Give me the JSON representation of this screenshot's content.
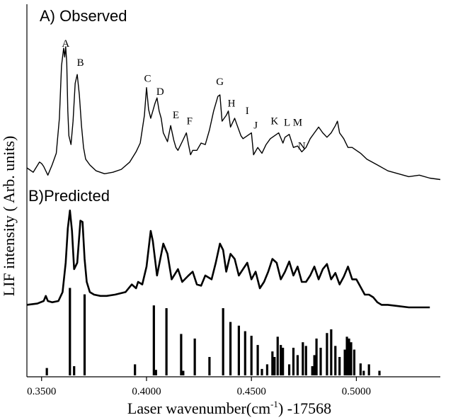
{
  "chart_data": {
    "type": "line",
    "title": "",
    "xlabel_main": "Laser wavenumber(cm",
    "xlabel_sup": "-1",
    "xlabel_tail": ") -17568",
    "ylabel": "LIF intensity ( Arb. units)",
    "xlim": [
      0.343,
      0.54
    ],
    "xticks": [
      {
        "value": 0.35,
        "label": "0.3500"
      },
      {
        "value": 0.4,
        "label": "0.4000"
      },
      {
        "value": 0.45,
        "label": "0.4500"
      },
      {
        "value": 0.5,
        "label": "0.5000"
      }
    ],
    "panels": [
      {
        "name": "observed",
        "label": "A) Observed"
      },
      {
        "name": "predicted",
        "label": "B)Predicted"
      }
    ],
    "peak_labels": [
      {
        "label": "A",
        "x": 0.3615,
        "y": 0.96
      },
      {
        "label": "B",
        "x": 0.3685,
        "y": 0.83
      },
      {
        "label": "C",
        "x": 0.4005,
        "y": 0.72
      },
      {
        "label": "D",
        "x": 0.4065,
        "y": 0.63
      },
      {
        "label": "E",
        "x": 0.414,
        "y": 0.47
      },
      {
        "label": "F",
        "x": 0.4205,
        "y": 0.43
      },
      {
        "label": "G",
        "x": 0.435,
        "y": 0.7
      },
      {
        "label": "H",
        "x": 0.4405,
        "y": 0.55
      },
      {
        "label": "I",
        "x": 0.448,
        "y": 0.5
      },
      {
        "label": "J",
        "x": 0.452,
        "y": 0.4
      },
      {
        "label": "K",
        "x": 0.461,
        "y": 0.43
      },
      {
        "label": "L",
        "x": 0.467,
        "y": 0.42
      },
      {
        "label": "M",
        "x": 0.472,
        "y": 0.42
      },
      {
        "label": "N",
        "x": 0.474,
        "y": 0.26
      }
    ],
    "series": [
      {
        "name": "Observed",
        "x": [
          0.343,
          0.346,
          0.349,
          0.35,
          0.351,
          0.353,
          0.355,
          0.357,
          0.3585,
          0.3595,
          0.3605,
          0.361,
          0.3615,
          0.362,
          0.3625,
          0.363,
          0.364,
          0.365,
          0.366,
          0.367,
          0.368,
          0.369,
          0.37,
          0.371,
          0.373,
          0.376,
          0.38,
          0.384,
          0.388,
          0.392,
          0.395,
          0.397,
          0.399,
          0.4,
          0.401,
          0.402,
          0.403,
          0.404,
          0.405,
          0.406,
          0.407,
          0.408,
          0.41,
          0.4115,
          0.413,
          0.414,
          0.415,
          0.417,
          0.419,
          0.42,
          0.421,
          0.422,
          0.424,
          0.426,
          0.428,
          0.43,
          0.432,
          0.434,
          0.435,
          0.436,
          0.438,
          0.439,
          0.44,
          0.442,
          0.443,
          0.445,
          0.446,
          0.448,
          0.45,
          0.451,
          0.453,
          0.455,
          0.457,
          0.459,
          0.461,
          0.463,
          0.465,
          0.466,
          0.468,
          0.47,
          0.472,
          0.474,
          0.476,
          0.478,
          0.48,
          0.482,
          0.484,
          0.486,
          0.488,
          0.49,
          0.491,
          0.492,
          0.494,
          0.496,
          0.498,
          0.5,
          0.502,
          0.505,
          0.51,
          0.515,
          0.52,
          0.525,
          0.53,
          0.535,
          0.54
        ],
        "y": [
          0.16,
          0.13,
          0.2,
          0.19,
          0.17,
          0.11,
          0.18,
          0.26,
          0.5,
          0.86,
          0.98,
          0.92,
          0.99,
          0.88,
          0.55,
          0.38,
          0.32,
          0.48,
          0.74,
          0.8,
          0.66,
          0.45,
          0.3,
          0.22,
          0.18,
          0.14,
          0.12,
          0.13,
          0.15,
          0.2,
          0.27,
          0.33,
          0.52,
          0.71,
          0.56,
          0.5,
          0.55,
          0.6,
          0.64,
          0.55,
          0.5,
          0.4,
          0.34,
          0.45,
          0.35,
          0.3,
          0.28,
          0.34,
          0.4,
          0.32,
          0.25,
          0.28,
          0.28,
          0.33,
          0.32,
          0.42,
          0.55,
          0.65,
          0.66,
          0.48,
          0.52,
          0.55,
          0.44,
          0.5,
          0.46,
          0.38,
          0.36,
          0.38,
          0.4,
          0.25,
          0.3,
          0.26,
          0.32,
          0.36,
          0.38,
          0.4,
          0.33,
          0.37,
          0.39,
          0.3,
          0.31,
          0.27,
          0.3,
          0.36,
          0.4,
          0.44,
          0.4,
          0.37,
          0.4,
          0.45,
          0.48,
          0.4,
          0.36,
          0.3,
          0.3,
          0.28,
          0.26,
          0.22,
          0.18,
          0.14,
          0.12,
          0.1,
          0.11,
          0.09,
          0.08
        ]
      },
      {
        "name": "Predicted",
        "x": [
          0.343,
          0.348,
          0.351,
          0.352,
          0.353,
          0.355,
          0.358,
          0.36,
          0.3615,
          0.3625,
          0.3635,
          0.3645,
          0.3655,
          0.367,
          0.3685,
          0.3695,
          0.3705,
          0.3715,
          0.373,
          0.375,
          0.378,
          0.381,
          0.385,
          0.39,
          0.393,
          0.395,
          0.396,
          0.398,
          0.4,
          0.402,
          0.403,
          0.405,
          0.408,
          0.41,
          0.412,
          0.415,
          0.417,
          0.42,
          0.422,
          0.424,
          0.426,
          0.428,
          0.431,
          0.433,
          0.435,
          0.4365,
          0.438,
          0.44,
          0.442,
          0.444,
          0.446,
          0.448,
          0.45,
          0.452,
          0.454,
          0.456,
          0.458,
          0.46,
          0.462,
          0.464,
          0.466,
          0.468,
          0.47,
          0.472,
          0.474,
          0.476,
          0.478,
          0.48,
          0.482,
          0.484,
          0.486,
          0.488,
          0.49,
          0.492,
          0.494,
          0.496,
          0.498,
          0.5,
          0.502,
          0.504,
          0.506,
          0.508,
          0.51,
          0.512,
          0.515,
          0.52,
          0.525,
          0.53,
          0.535
        ],
        "y": [
          0.22,
          0.23,
          0.25,
          0.29,
          0.25,
          0.24,
          0.25,
          0.32,
          0.55,
          0.82,
          0.96,
          0.8,
          0.5,
          0.55,
          0.88,
          0.87,
          0.58,
          0.4,
          0.32,
          0.3,
          0.29,
          0.29,
          0.3,
          0.32,
          0.38,
          0.35,
          0.4,
          0.38,
          0.52,
          0.8,
          0.72,
          0.45,
          0.7,
          0.62,
          0.42,
          0.5,
          0.4,
          0.45,
          0.48,
          0.38,
          0.37,
          0.45,
          0.42,
          0.55,
          0.7,
          0.65,
          0.48,
          0.62,
          0.58,
          0.45,
          0.5,
          0.55,
          0.42,
          0.48,
          0.35,
          0.4,
          0.48,
          0.58,
          0.55,
          0.42,
          0.48,
          0.56,
          0.45,
          0.52,
          0.4,
          0.4,
          0.45,
          0.52,
          0.42,
          0.5,
          0.54,
          0.42,
          0.47,
          0.38,
          0.44,
          0.52,
          0.42,
          0.42,
          0.36,
          0.3,
          0.3,
          0.28,
          0.24,
          0.22,
          0.22,
          0.21,
          0.2,
          0.2,
          0.2
        ]
      }
    ],
    "stick_spectrum": {
      "x": [
        0.3525,
        0.3635,
        0.3655,
        0.3705,
        0.3945,
        0.4035,
        0.4045,
        0.4095,
        0.4165,
        0.4175,
        0.423,
        0.43,
        0.4365,
        0.44,
        0.444,
        0.447,
        0.45,
        0.453,
        0.455,
        0.4575,
        0.46,
        0.461,
        0.4625,
        0.464,
        0.465,
        0.468,
        0.47,
        0.472,
        0.4745,
        0.476,
        0.479,
        0.48,
        0.481,
        0.483,
        0.486,
        0.488,
        0.49,
        0.492,
        0.4945,
        0.4955,
        0.4965,
        0.4975,
        0.499,
        0.502,
        0.5035,
        0.506,
        0.511
      ],
      "y": [
        0.08,
        0.95,
        0.1,
        0.88,
        0.12,
        0.76,
        0.06,
        0.73,
        0.45,
        0.05,
        0.4,
        0.2,
        0.73,
        0.58,
        0.54,
        0.48,
        0.43,
        0.33,
        0.07,
        0.12,
        0.26,
        0.2,
        0.42,
        0.33,
        0.3,
        0.12,
        0.3,
        0.22,
        0.36,
        0.32,
        0.1,
        0.22,
        0.4,
        0.3,
        0.46,
        0.5,
        0.32,
        0.2,
        0.28,
        0.42,
        0.4,
        0.36,
        0.28,
        0.13,
        0.05,
        0.12,
        0.05
      ]
    }
  }
}
